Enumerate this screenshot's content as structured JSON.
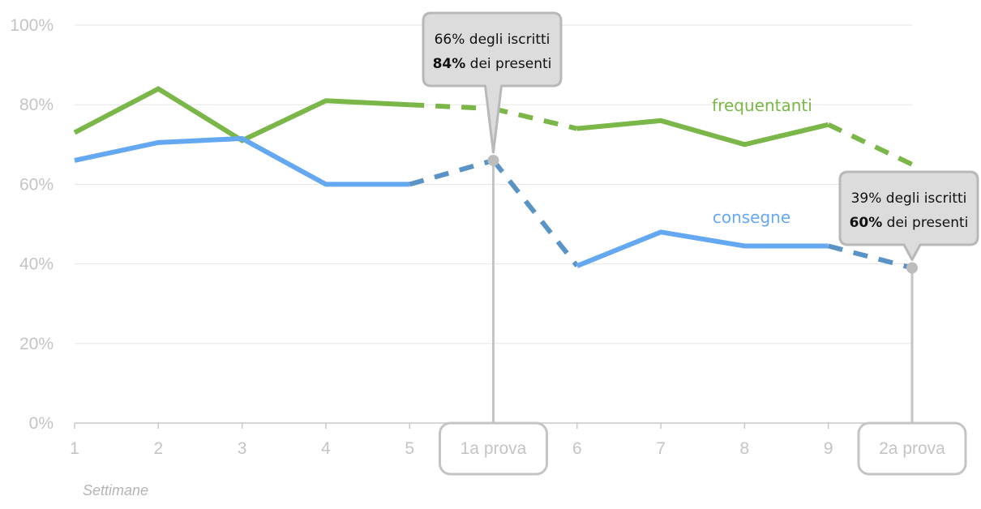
{
  "chart_data": {
    "type": "line",
    "categories": [
      "1",
      "2",
      "3",
      "4",
      "5",
      "1a prova",
      "6",
      "7",
      "8",
      "9",
      "2a prova"
    ],
    "highlighted_categories": [
      "1a prova",
      "2a prova"
    ],
    "xlabel": "Settimane",
    "ylabel": "",
    "ylim": [
      0,
      100
    ],
    "yticks": [
      "0%",
      "20%",
      "40%",
      "60%",
      "80%",
      "100%"
    ],
    "grid": true,
    "series": [
      {
        "name": "frequentanti",
        "color": "#7ab648",
        "values": [
          73,
          84,
          71,
          81,
          80,
          79,
          74,
          76,
          70,
          75,
          65
        ],
        "dashed_segments": [
          [
            4,
            5
          ],
          [
            5,
            6
          ],
          [
            9,
            10
          ]
        ]
      },
      {
        "name": "consegne",
        "color": "#65a8f2",
        "dashed_color": "#5a93c6",
        "values": [
          66,
          70.5,
          71.5,
          60,
          60,
          66,
          39.5,
          48,
          44.5,
          44.5,
          39
        ],
        "dashed_segments": [
          [
            4,
            5
          ],
          [
            5,
            6
          ],
          [
            9,
            10
          ]
        ]
      }
    ],
    "annotations": [
      {
        "category": "1a prova",
        "value": 66,
        "line1": "66% degli iscritti",
        "line2_bold": "84%",
        "line2_rest": " dei presenti"
      },
      {
        "category": "2a prova",
        "value": 39,
        "line1": "39% degli iscritti",
        "line2_bold": "60%",
        "line2_rest": " dei presenti"
      }
    ]
  }
}
